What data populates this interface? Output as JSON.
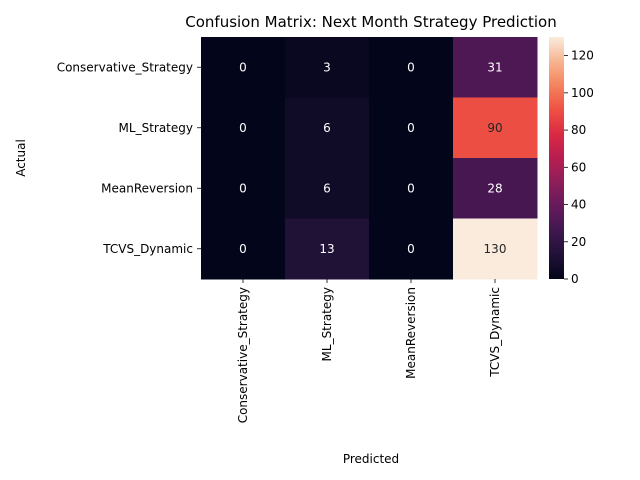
{
  "chart_data": {
    "type": "heatmap",
    "title": "Confusion Matrix: Next Month Strategy Prediction",
    "xlabel": "Predicted",
    "ylabel": "Actual",
    "row_labels": [
      "Conservative_Strategy",
      "ML_Strategy",
      "MeanReversion",
      "TCVS_Dynamic"
    ],
    "col_labels": [
      "Conservative_Strategy",
      "ML_Strategy",
      "MeanReversion",
      "TCVS_Dynamic"
    ],
    "values": [
      [
        0,
        3,
        0,
        31
      ],
      [
        0,
        6,
        0,
        90
      ],
      [
        0,
        6,
        0,
        28
      ],
      [
        0,
        13,
        0,
        130
      ]
    ],
    "vmin": 0,
    "vmax": 130,
    "colorbar_ticks": [
      0,
      20,
      40,
      60,
      80,
      100,
      120
    ],
    "colormap": "rocket",
    "grid": false
  }
}
